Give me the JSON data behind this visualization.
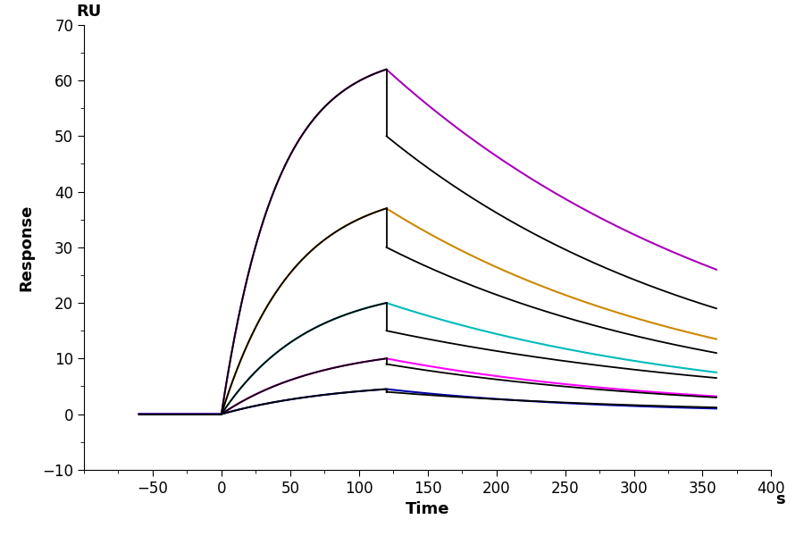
{
  "xlabel": "Time",
  "xlabel_unit": "s",
  "ylabel": "Response",
  "ylabel_top": "RU",
  "xlim": [
    -100,
    400
  ],
  "ylim": [
    -10,
    70
  ],
  "xticks": [
    -50,
    0,
    50,
    100,
    150,
    200,
    250,
    300,
    350,
    400
  ],
  "yticks": [
    -10,
    0,
    10,
    20,
    30,
    40,
    50,
    60,
    70
  ],
  "t_assoc_start": 0,
  "t_assoc_end": 120,
  "t_dissoc_end": 360,
  "t_baseline_start": -60,
  "curves": [
    {
      "color": "#AA00BB",
      "peak": 62,
      "end": 26,
      "assoc_shape": 0.95,
      "dissoc_shape": 0.72
    },
    {
      "color": "#CC8800",
      "peak": 37,
      "end": 13.5,
      "assoc_shape": 0.9,
      "dissoc_shape": 0.68
    },
    {
      "color": "#00BBBB",
      "peak": 20,
      "end": 7.5,
      "assoc_shape": 0.85,
      "dissoc_shape": 0.62
    },
    {
      "color": "#FF00FF",
      "peak": 10,
      "end": 3.2,
      "assoc_shape": 0.8,
      "dissoc_shape": 0.55
    },
    {
      "color": "#0000AA",
      "peak": 4.5,
      "end": 1.0,
      "assoc_shape": 0.75,
      "dissoc_shape": 0.45
    }
  ],
  "black_curves": [
    {
      "peak": 62,
      "drop_to": 50,
      "end": 19,
      "assoc_shape": 0.95,
      "dissoc_shape": 0.55
    },
    {
      "peak": 37,
      "drop_to": 30,
      "end": 11,
      "assoc_shape": 0.9,
      "dissoc_shape": 0.52
    },
    {
      "peak": 20,
      "drop_to": 15,
      "end": 6.5,
      "assoc_shape": 0.85,
      "dissoc_shape": 0.5
    },
    {
      "peak": 10,
      "drop_to": 9,
      "end": 3.0,
      "assoc_shape": 0.8,
      "dissoc_shape": 0.48
    },
    {
      "peak": 4.5,
      "drop_to": 4,
      "end": 1.2,
      "assoc_shape": 0.75,
      "dissoc_shape": 0.45
    }
  ],
  "background_color": "#ffffff",
  "tick_color": "#000000",
  "label_color": "#000000",
  "ru_s_color": "#000000",
  "axis_label_fontsize": 13,
  "tick_fontsize": 12,
  "linewidth_colored": 1.5,
  "linewidth_black": 1.3
}
